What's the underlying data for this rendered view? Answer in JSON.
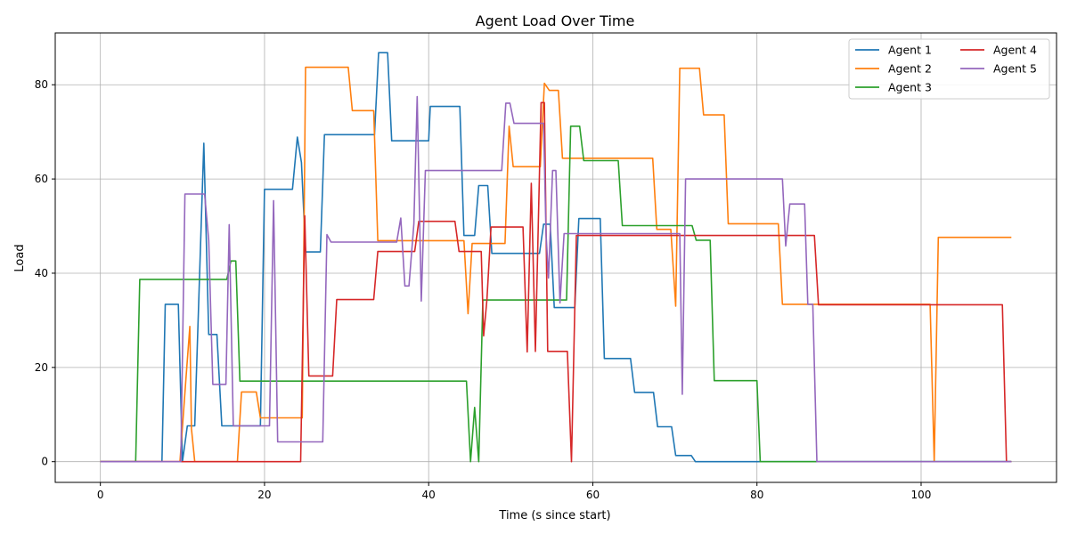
{
  "chart_data": {
    "type": "line",
    "title": "Agent Load Over Time",
    "xlabel": "Time (s since start)",
    "ylabel": "Load",
    "xlim": [
      -5.5,
      116.5
    ],
    "ylim": [
      -4.4,
      91.0
    ],
    "xticks": [
      0,
      20,
      40,
      60,
      80,
      100
    ],
    "yticks": [
      0,
      20,
      40,
      60,
      80
    ],
    "grid": true,
    "legend": {
      "placement": "top-right",
      "columns": 2
    },
    "series": [
      {
        "name": "Agent 1",
        "color": "#1f77b4",
        "points": [
          [
            0,
            0
          ],
          [
            7.5,
            0
          ],
          [
            7.9,
            33.4
          ],
          [
            9.5,
            33.4
          ],
          [
            10.0,
            0
          ],
          [
            10.6,
            7.6
          ],
          [
            11.5,
            7.6
          ],
          [
            12.6,
            67.6
          ],
          [
            13.2,
            27.0
          ],
          [
            14.2,
            27.0
          ],
          [
            14.8,
            7.6
          ],
          [
            19.5,
            7.6
          ],
          [
            20.0,
            57.8
          ],
          [
            23.4,
            57.8
          ],
          [
            24.0,
            68.9
          ],
          [
            24.5,
            63.5
          ],
          [
            25.0,
            44.5
          ],
          [
            26.8,
            44.5
          ],
          [
            27.3,
            69.4
          ],
          [
            33.4,
            69.4
          ],
          [
            33.9,
            86.8
          ],
          [
            35.0,
            86.8
          ],
          [
            35.5,
            68.1
          ],
          [
            40.0,
            68.1
          ],
          [
            40.2,
            75.4
          ],
          [
            43.8,
            75.4
          ],
          [
            44.3,
            48.0
          ],
          [
            45.6,
            48.0
          ],
          [
            46.1,
            58.6
          ],
          [
            47.2,
            58.6
          ],
          [
            47.7,
            44.2
          ],
          [
            53.5,
            44.2
          ],
          [
            54.0,
            50.4
          ],
          [
            54.8,
            50.4
          ],
          [
            55.3,
            32.7
          ],
          [
            57.8,
            32.7
          ],
          [
            58.3,
            51.6
          ],
          [
            60.9,
            51.6
          ],
          [
            61.4,
            21.9
          ],
          [
            64.6,
            21.9
          ],
          [
            65.1,
            14.7
          ],
          [
            67.4,
            14.7
          ],
          [
            67.9,
            7.4
          ],
          [
            69.6,
            7.4
          ],
          [
            70.1,
            1.3
          ],
          [
            72.0,
            1.3
          ],
          [
            72.5,
            0
          ],
          [
            111,
            0
          ]
        ]
      },
      {
        "name": "Agent 2",
        "color": "#ff7f0e",
        "points": [
          [
            0,
            0
          ],
          [
            16.7,
            0
          ],
          [
            17.2,
            14.8
          ],
          [
            19.0,
            14.8
          ],
          [
            19.5,
            9.3
          ],
          [
            24.6,
            9.3
          ],
          [
            25.0,
            83.7
          ],
          [
            30.2,
            83.7
          ],
          [
            30.7,
            74.5
          ],
          [
            33.3,
            74.5
          ],
          [
            33.8,
            46.9
          ],
          [
            44.3,
            46.9
          ],
          [
            44.8,
            31.4
          ],
          [
            45.3,
            46.3
          ],
          [
            49.3,
            46.3
          ],
          [
            49.8,
            71.2
          ],
          [
            50.3,
            62.6
          ],
          [
            53.6,
            62.6
          ],
          [
            54.1,
            80.3
          ],
          [
            54.7,
            78.8
          ],
          [
            55.8,
            78.8
          ],
          [
            56.3,
            64.4
          ],
          [
            67.3,
            64.4
          ],
          [
            67.8,
            49.3
          ],
          [
            69.5,
            49.3
          ],
          [
            70.1,
            33.0
          ],
          [
            70.6,
            83.5
          ],
          [
            73.0,
            83.5
          ],
          [
            73.5,
            73.6
          ],
          [
            76.0,
            73.6
          ],
          [
            76.5,
            50.5
          ],
          [
            82.6,
            50.5
          ],
          [
            83.1,
            33.4
          ],
          [
            101.1,
            33.4
          ],
          [
            101.6,
            0
          ],
          [
            102.1,
            47.6
          ],
          [
            111,
            47.6
          ]
        ],
        "pre": [
          [
            0,
            0
          ],
          [
            9.7,
            0
          ],
          [
            10.4,
            17.0
          ],
          [
            10.9,
            28.7
          ],
          [
            11.1,
            7.0
          ],
          [
            11.5,
            0
          ]
        ]
      },
      {
        "name": "Agent 3",
        "color": "#2ca02c",
        "points": [
          [
            0,
            0
          ],
          [
            4.3,
            0
          ],
          [
            4.8,
            38.7
          ],
          [
            15.4,
            38.7
          ],
          [
            15.9,
            42.6
          ],
          [
            16.5,
            42.6
          ],
          [
            17.0,
            17.1
          ],
          [
            44.6,
            17.1
          ],
          [
            45.1,
            0
          ],
          [
            45.6,
            11.5
          ],
          [
            46.1,
            0
          ],
          [
            46.6,
            34.3
          ],
          [
            56.8,
            34.3
          ],
          [
            57.3,
            71.2
          ],
          [
            58.4,
            71.2
          ],
          [
            58.9,
            63.9
          ],
          [
            63.1,
            63.9
          ],
          [
            63.6,
            50.1
          ],
          [
            72.1,
            50.1
          ],
          [
            72.6,
            47.0
          ],
          [
            74.3,
            47.0
          ],
          [
            74.8,
            17.2
          ],
          [
            80.0,
            17.2
          ],
          [
            80.4,
            0
          ],
          [
            111,
            0
          ]
        ]
      },
      {
        "name": "Agent 4",
        "color": "#d62728",
        "points": [
          [
            0,
            0
          ],
          [
            24.4,
            0
          ],
          [
            24.9,
            52.2
          ],
          [
            25.4,
            18.2
          ],
          [
            28.3,
            18.2
          ],
          [
            28.8,
            34.4
          ],
          [
            33.3,
            34.4
          ],
          [
            33.8,
            44.6
          ],
          [
            38.3,
            44.6
          ],
          [
            38.8,
            51.0
          ],
          [
            43.2,
            51.0
          ],
          [
            43.7,
            44.6
          ],
          [
            46.4,
            44.6
          ],
          [
            46.7,
            26.7
          ],
          [
            47.1,
            34.4
          ],
          [
            47.6,
            49.8
          ],
          [
            51.5,
            49.8
          ],
          [
            52.0,
            23.3
          ],
          [
            52.5,
            59.1
          ],
          [
            53.0,
            23.4
          ],
          [
            53.7,
            76.2
          ],
          [
            54.1,
            76.2
          ],
          [
            54.5,
            23.4
          ],
          [
            56.9,
            23.4
          ],
          [
            57.4,
            0
          ],
          [
            58.0,
            48.0
          ],
          [
            87.0,
            48.0
          ],
          [
            87.5,
            33.3
          ],
          [
            109.9,
            33.3
          ],
          [
            110.4,
            0
          ],
          [
            111,
            0
          ]
        ]
      },
      {
        "name": "Agent 5",
        "color": "#9467bd",
        "points": [
          [
            0,
            0
          ],
          [
            9.8,
            0
          ],
          [
            10.3,
            56.8
          ],
          [
            12.7,
            56.8
          ],
          [
            13.2,
            47.0
          ],
          [
            13.7,
            16.4
          ],
          [
            15.3,
            16.4
          ],
          [
            15.7,
            50.3
          ],
          [
            16.2,
            7.6
          ],
          [
            20.6,
            7.6
          ],
          [
            21.1,
            55.4
          ],
          [
            21.6,
            4.2
          ],
          [
            27.1,
            4.2
          ],
          [
            27.6,
            48.2
          ],
          [
            28.1,
            46.6
          ],
          [
            36.1,
            46.6
          ],
          [
            36.6,
            51.7
          ],
          [
            37.1,
            37.3
          ],
          [
            37.6,
            37.3
          ],
          [
            38.2,
            50.5
          ],
          [
            38.6,
            77.5
          ],
          [
            39.1,
            34.1
          ],
          [
            39.6,
            61.8
          ],
          [
            48.9,
            61.8
          ],
          [
            49.4,
            76.1
          ],
          [
            49.9,
            76.1
          ],
          [
            50.4,
            71.8
          ],
          [
            54.0,
            71.8
          ],
          [
            54.3,
            48.6
          ],
          [
            54.6,
            39.0
          ],
          [
            55.1,
            61.8
          ],
          [
            55.5,
            61.8
          ],
          [
            56.0,
            33.7
          ],
          [
            56.5,
            48.4
          ],
          [
            70.6,
            48.4
          ],
          [
            70.9,
            14.3
          ],
          [
            71.3,
            60.0
          ],
          [
            83.1,
            60.0
          ],
          [
            83.5,
            45.8
          ],
          [
            84.0,
            54.7
          ],
          [
            85.8,
            54.7
          ],
          [
            86.2,
            33.4
          ],
          [
            86.8,
            33.4
          ],
          [
            87.3,
            0
          ],
          [
            111,
            0
          ]
        ]
      }
    ]
  }
}
